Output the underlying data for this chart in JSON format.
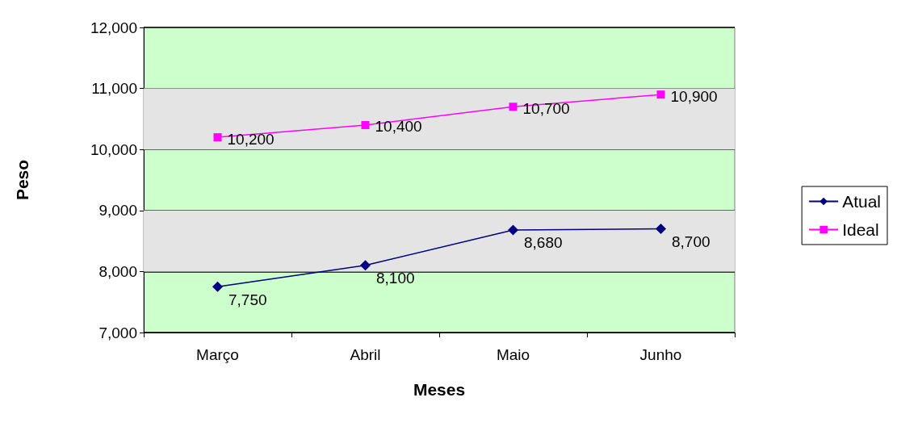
{
  "chart_data": {
    "type": "line",
    "xlabel": "Meses",
    "ylabel": "Peso",
    "categories": [
      "Março",
      "Abril",
      "Maio",
      "Junho"
    ],
    "series": [
      {
        "name": "Atual",
        "color": "#000080",
        "marker": "diamond",
        "values": [
          7750,
          8100,
          8680,
          8700
        ],
        "value_labels": [
          "7,750",
          "8,100",
          "8,680",
          "8,700"
        ]
      },
      {
        "name": "Ideal",
        "color": "#ff00ff",
        "marker": "square",
        "values": [
          10200,
          10400,
          10700,
          10900
        ],
        "value_labels": [
          "10,200",
          "10,400",
          "10,700",
          "10,900"
        ]
      }
    ],
    "ylim": [
      7000,
      12000
    ],
    "yticks": [
      {
        "value": 7000,
        "label": "7,000"
      },
      {
        "value": 8000,
        "label": "8,000"
      },
      {
        "value": 9000,
        "label": "9,000"
      },
      {
        "value": 10000,
        "label": "10,000"
      },
      {
        "value": 11000,
        "label": "11,000"
      },
      {
        "value": 12000,
        "label": "12,000"
      }
    ],
    "bands": [
      {
        "axis": "y",
        "from": 8000,
        "to": 9000,
        "color": "#e4e4e4"
      },
      {
        "axis": "y",
        "from": 10000,
        "to": 11000,
        "color": "#e4e4e4"
      }
    ],
    "grid": "y",
    "legend": "right",
    "line_style": "solid"
  }
}
